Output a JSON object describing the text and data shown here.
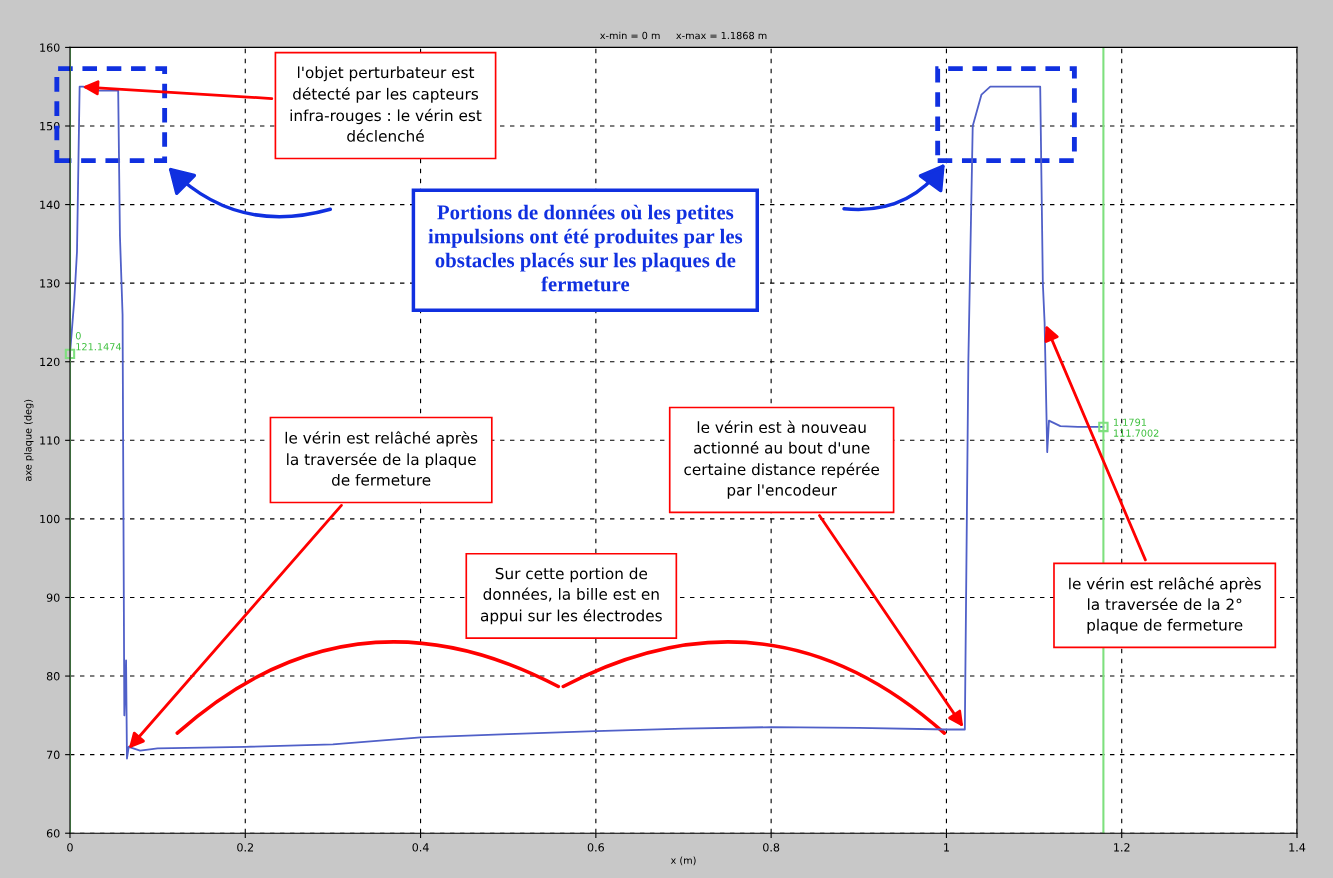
{
  "chart_data": {
    "type": "line",
    "title": "x-min = 0 m     x-max = 1.1868 m",
    "xlabel": "x (m)",
    "ylabel": "axe plaque (deg)",
    "x": [
      0,
      0.005,
      0.008,
      0.011,
      0.015,
      0.03,
      0.055,
      0.057,
      0.06,
      0.062,
      0.064,
      0.065,
      0.067,
      0.08,
      0.1,
      0.2,
      0.3,
      0.4,
      0.5,
      0.6,
      0.7,
      0.8,
      0.9,
      1.0,
      1.021,
      1.025,
      1.03,
      1.04,
      1.05,
      1.08,
      1.107,
      1.11,
      1.112,
      1.115,
      1.117,
      1.13,
      1.15,
      1.1791
    ],
    "series": [
      {
        "color": "#5060c8",
        "values": [
          121,
          128,
          134,
          155,
          155,
          154.5,
          154.5,
          136,
          126,
          75,
          82,
          69.5,
          71,
          70.5,
          70.8,
          71,
          71.3,
          72.2,
          72.6,
          73,
          73.3,
          73.5,
          73.4,
          73.2,
          73.2,
          120,
          150,
          154,
          155,
          155,
          155,
          130,
          125,
          108.5,
          112.5,
          111.8,
          111.7,
          111.7
        ]
      }
    ],
    "xlim": [
      0,
      1.4
    ],
    "ylim": [
      60,
      160
    ],
    "xticks": [
      0,
      0.2,
      0.4,
      0.6,
      0.8,
      1,
      1.2,
      1.4
    ],
    "yticks": [
      60,
      70,
      80,
      90,
      100,
      110,
      120,
      130,
      140,
      150,
      160
    ],
    "grid": true,
    "line_style": "solid",
    "marker": "none",
    "ref_lines": [
      {
        "axis": "x",
        "value": 0,
        "color": "#7ee07e"
      },
      {
        "axis": "x",
        "value": 1.1791,
        "color": "#7ee07e"
      }
    ],
    "annotations": [
      {
        "text": "0\n121.1474",
        "x": 0,
        "y": 121
      },
      {
        "text": "1.1791\n111.7002",
        "x": 1.1791,
        "y": 111.7
      },
      {
        "text": "l'objet perturbateur est\ndétecté par les capteurs\ninfra-rouges : le vérin est\ndéclenché",
        "x": 0.011,
        "y": 155
      },
      "Portions de données où les petites\nimpulsions ont été produites par les\nobstacles placés sur les plaques de\nfermeture",
      {
        "text": "le vérin est relâché après\nla traversée de la plaque\nde fermeture",
        "x": 0.065,
        "y": 70.5
      },
      {
        "text": "le vérin est à nouveau\nactionné au bout d'une\ncertaine distance repérée\npar l'encodeur",
        "x": 1.021,
        "y": 73.2
      },
      "Sur cette portion de\ndonnées, la bille est en\nappui sur les électrodes",
      {
        "text": "le vérin est relâché après\nla traversée de la 2°\nplaque de fermeture",
        "x": 1.112,
        "y": 125
      }
    ]
  }
}
